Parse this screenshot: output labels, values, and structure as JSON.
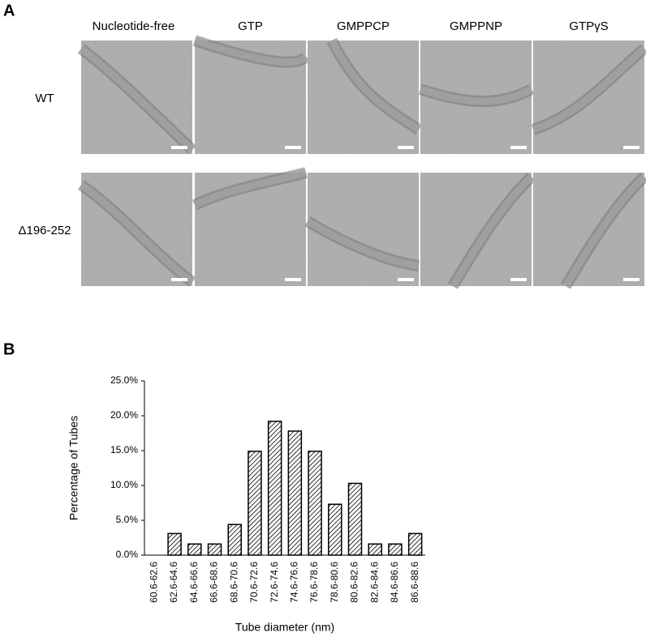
{
  "panel_a": {
    "label": "A",
    "columns": [
      "Nucleotide-free",
      "GTP",
      "GMPPCP",
      "GMPPNP",
      "GTPγS"
    ],
    "rows": [
      "WT",
      "Δ196-252"
    ]
  },
  "panel_b": {
    "label": "B"
  },
  "chart_data": {
    "type": "bar",
    "x_label": "Tube diameter (nm)",
    "y_label": "Percentage of Tubes",
    "categories": [
      "60.6-62.6",
      "62.6-64.6",
      "64.6-66.6",
      "66.6-68.6",
      "68.6-70.6",
      "70.6-72.6",
      "72.6-74.6",
      "74.6-76.6",
      "76.6-78.6",
      "78.6-80.6",
      "80.6-82.6",
      "82.6-84.6",
      "84.6-86.6",
      "86.6-88.6"
    ],
    "values": [
      0,
      3.1,
      1.6,
      1.6,
      4.4,
      14.9,
      19.2,
      17.8,
      14.9,
      7.3,
      10.3,
      1.6,
      1.6,
      3.1
    ],
    "ylim": [
      0,
      25
    ],
    "yticks": [
      {
        "value": 0,
        "label": "0.0%"
      },
      {
        "value": 5,
        "label": "5.0%"
      },
      {
        "value": 10,
        "label": "10.0%"
      },
      {
        "value": 15,
        "label": "15.0%"
      },
      {
        "value": 20,
        "label": "20.0%"
      },
      {
        "value": 25,
        "label": "25.0%"
      }
    ],
    "color": "#000000"
  }
}
